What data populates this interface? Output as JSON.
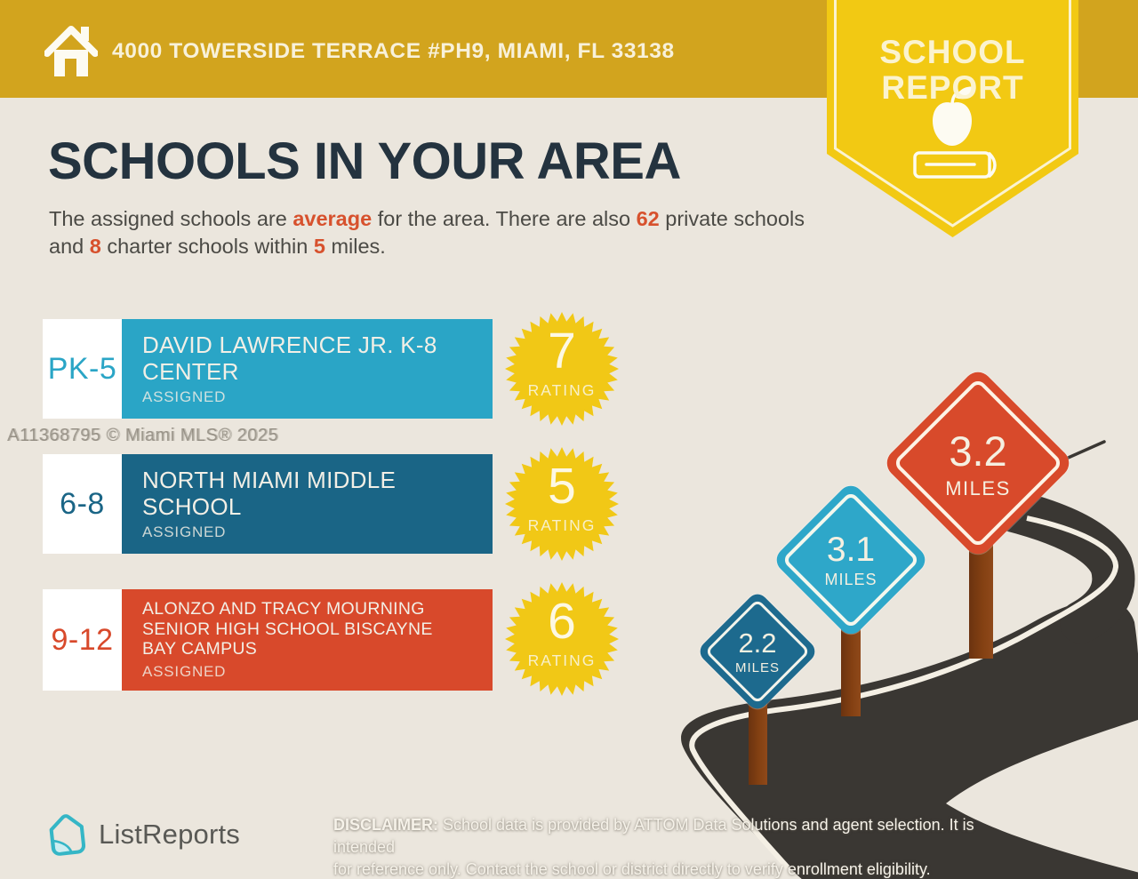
{
  "header": {
    "address": "4000 TOWERSIDE TERRACE #PH9, MIAMI, FL 33138"
  },
  "ribbon": {
    "line1": "SCHOOL",
    "line2": "REPORT"
  },
  "page": {
    "title": "SCHOOLS IN YOUR AREA"
  },
  "intro": {
    "seg1": "The assigned schools are ",
    "hl1": "average",
    "seg2": " for the area. There are also ",
    "hl2": "62",
    "seg3": " private schools and ",
    "hl3": "8",
    "seg4": " charter schools within ",
    "hl4": "5",
    "seg5": " miles."
  },
  "watermark": "A11368795 © Miami MLS® 2025",
  "rating_label": "RATING",
  "schools": [
    {
      "grades": "PK-5",
      "name": "DAVID LAWRENCE JR. K-8 CENTER",
      "status": "ASSIGNED",
      "rating": "7",
      "color": "#2aa5c6"
    },
    {
      "grades": "6-8",
      "name": "NORTH MIAMI MIDDLE SCHOOL",
      "status": "ASSIGNED",
      "rating": "5",
      "color": "#1a6586"
    },
    {
      "grades": "9-12",
      "name": "ALONZO AND TRACY MOURNING SENIOR HIGH SCHOOL BISCAYNE BAY CAMPUS",
      "status": "ASSIGNED",
      "rating": "6",
      "color": "#d8492b"
    }
  ],
  "signs": [
    {
      "distance": "2.2",
      "unit": "MILES",
      "color": "#1d6a8e"
    },
    {
      "distance": "3.1",
      "unit": "MILES",
      "color": "#2ea7c9"
    },
    {
      "distance": "3.2",
      "unit": "MILES",
      "color": "#d84a2b"
    }
  ],
  "footer": {
    "brand": "ListReports",
    "disclaimer_label": "DISCLAIMER:",
    "disclaimer_line1": " School data is provided by ATTOM Data Solutions and agent selection. It is intended",
    "disclaimer_line2": "for reference only. Contact the school or district directly to verify enrollment eligibility."
  },
  "colors": {
    "header_gold": "#d2a41e",
    "ribbon_yellow": "#f2c913",
    "background": "#ebe6dd",
    "title_navy": "#24333f",
    "accent_orange": "#d7512d",
    "badge_yellow": "#f1c816",
    "road_dark": "#3a3733",
    "post_brown": "#7a3c15",
    "brand_teal": "#35b6c6"
  }
}
